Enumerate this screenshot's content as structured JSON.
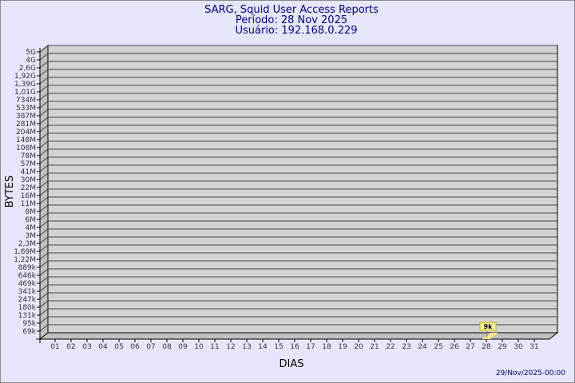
{
  "chart_data": {
    "type": "bar",
    "title": "SARG, Squid User Access Reports",
    "subtitle_lines": [
      "Período: 28 Nov 2025",
      "Usuário: 192.168.0.229"
    ],
    "xlabel": "DIAS",
    "ylabel": "BYTES",
    "y_tick_labels": [
      "5G",
      "4G",
      "2,6G",
      "1,92G",
      "1,39G",
      "1,01G",
      "734M",
      "533M",
      "387M",
      "281M",
      "204M",
      "148M",
      "108M",
      "78M",
      "57M",
      "41M",
      "30M",
      "22M",
      "16M",
      "11M",
      "8M",
      "6M",
      "4M",
      "3M",
      "2,3M",
      "1,69M",
      "1,22M",
      "889k",
      "646k",
      "469k",
      "341k",
      "247k",
      "180k",
      "131k",
      "95k",
      "69k"
    ],
    "categories": [
      "01",
      "02",
      "03",
      "04",
      "05",
      "06",
      "07",
      "08",
      "09",
      "10",
      "11",
      "12",
      "13",
      "14",
      "15",
      "16",
      "17",
      "18",
      "19",
      "20",
      "21",
      "22",
      "23",
      "24",
      "25",
      "26",
      "27",
      "28",
      "29",
      "30",
      "31"
    ],
    "series": [
      {
        "values": [
          0,
          0,
          0,
          0,
          0,
          0,
          0,
          0,
          0,
          0,
          0,
          0,
          0,
          0,
          0,
          0,
          0,
          0,
          0,
          0,
          0,
          0,
          0,
          0,
          0,
          0,
          0,
          9000,
          0,
          0,
          0
        ],
        "data_labels": {
          "28": "9k"
        }
      }
    ],
    "y_scale": "log",
    "grid": true,
    "colors": {
      "background": "#e6e6fa",
      "plot": "#d3d3d3",
      "bar": "#f5e38f",
      "title": "#000080"
    },
    "timestamp": "29/Nov/2025-00:00"
  }
}
